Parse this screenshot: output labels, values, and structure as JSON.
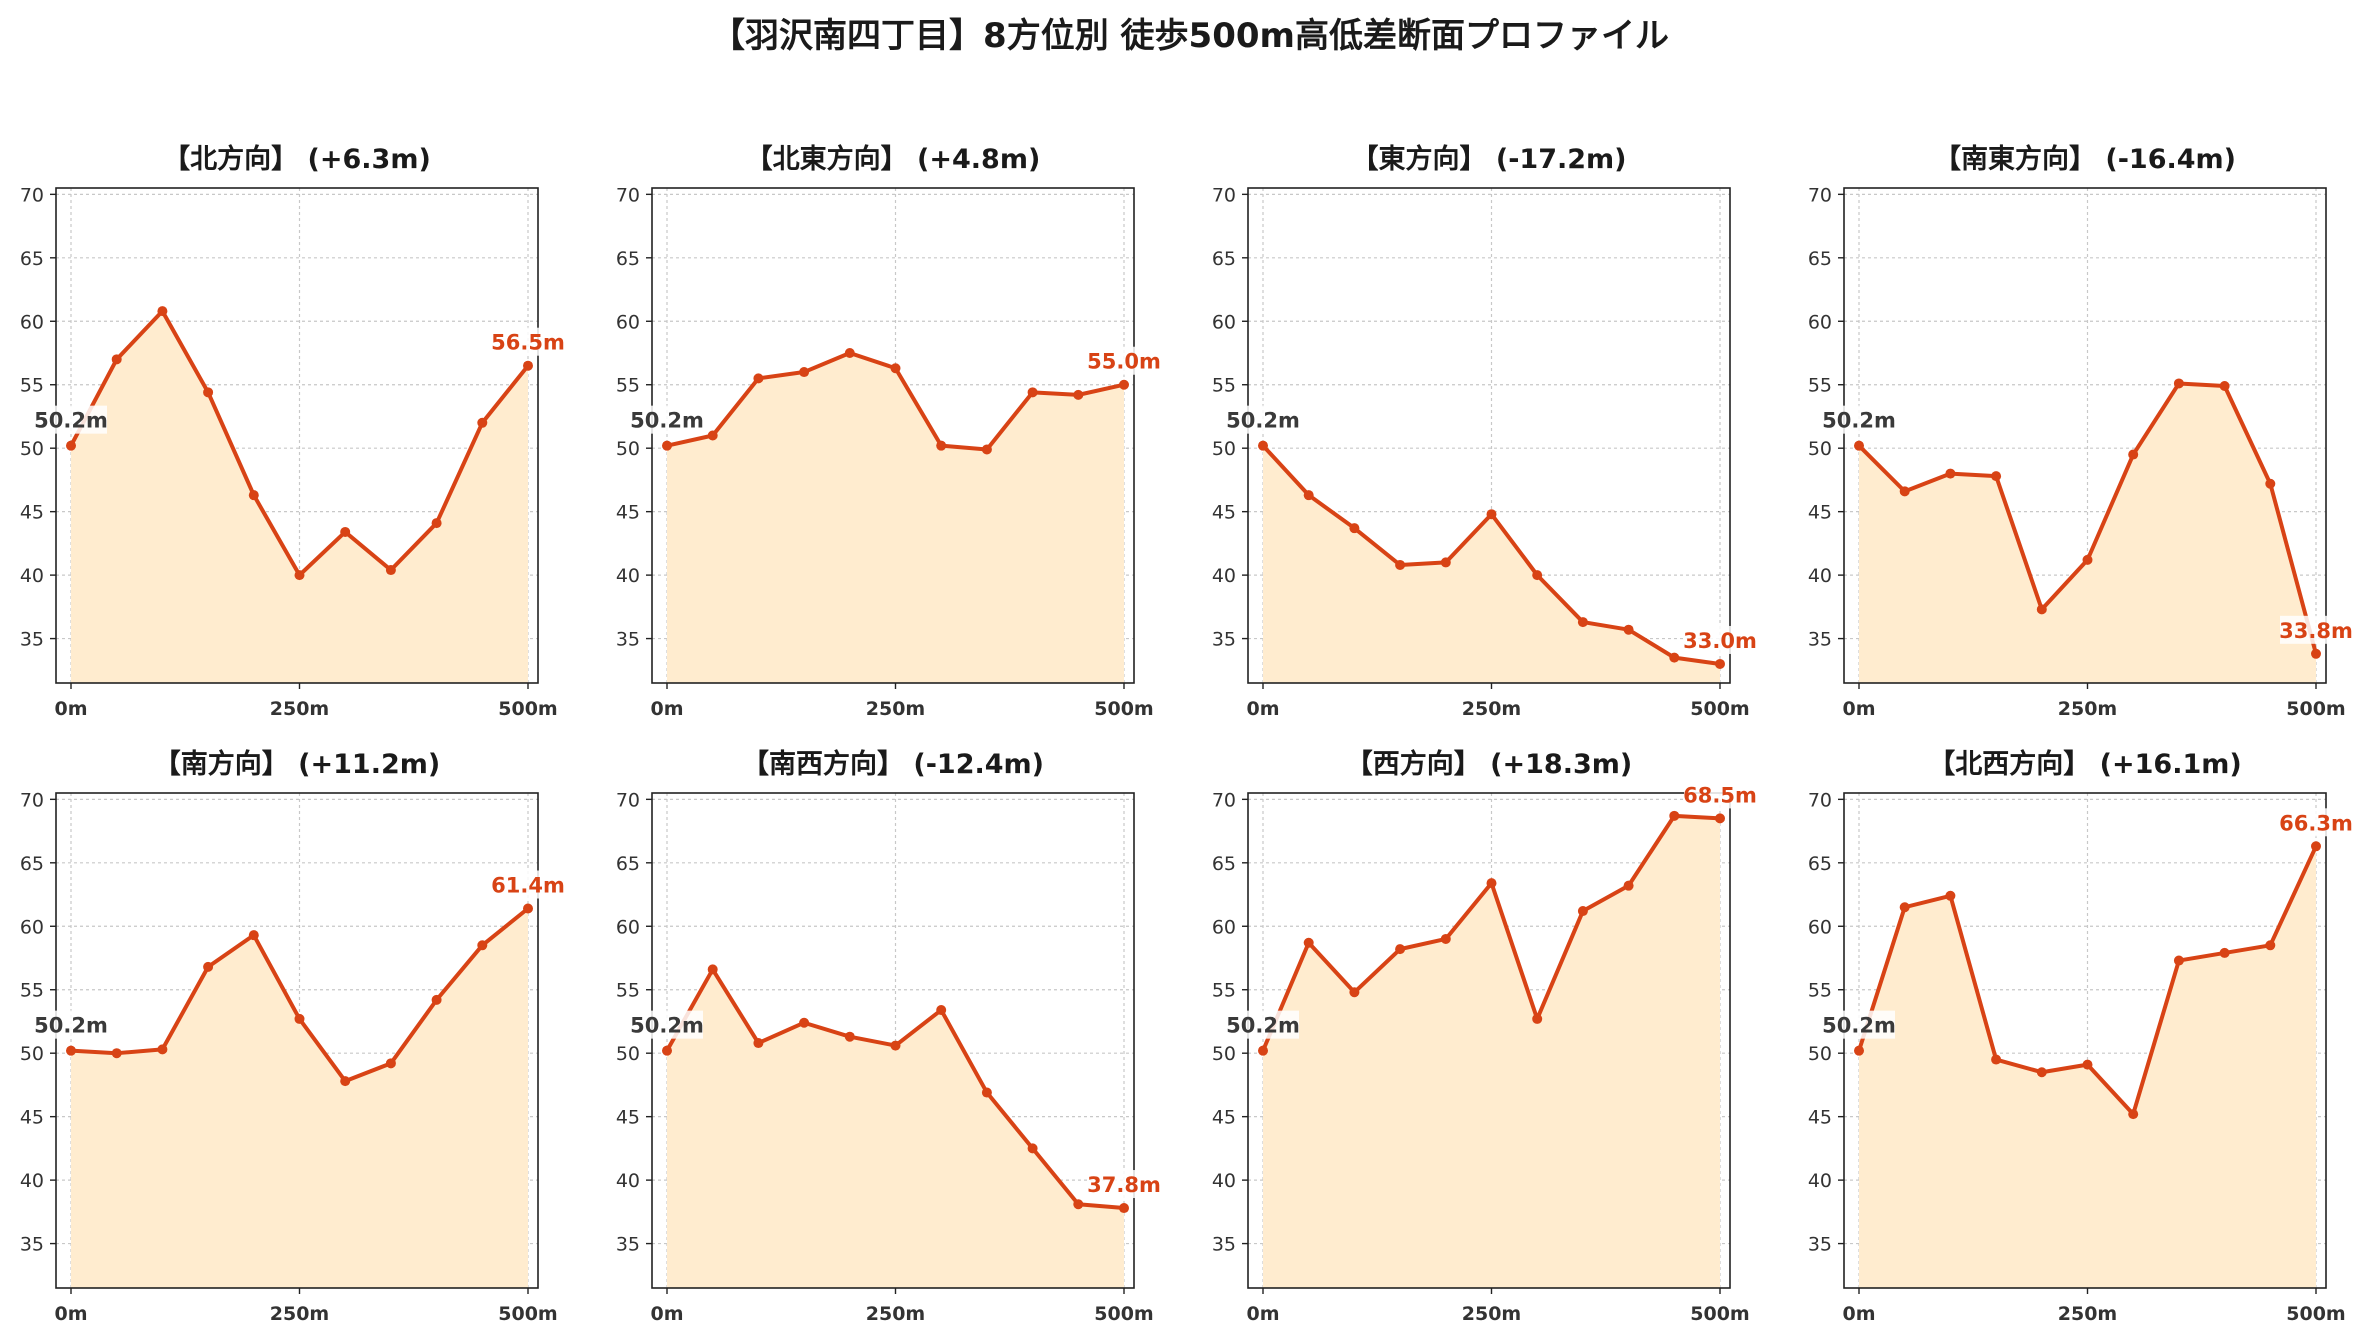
{
  "title": "【羽沢南四丁目】8方位別 徒歩500m高低差断面プロファイル",
  "colors": {
    "line": "#d84315",
    "fill": "#ffeccf",
    "grid": "#c8c8c8",
    "start_label": "#3a3a3a",
    "end_label": "#d84315"
  },
  "chart_data": [
    {
      "type": "area",
      "title": "【北方向】 (+6.3m)",
      "x": [
        0,
        50,
        100,
        150,
        200,
        250,
        300,
        350,
        400,
        450,
        500
      ],
      "xticks": [
        "0m",
        "250m",
        "500m"
      ],
      "ylim": [
        31.5,
        70.5
      ],
      "yticks": [
        35,
        40,
        45,
        50,
        55,
        60,
        65,
        70
      ],
      "values": [
        50.2,
        57.0,
        60.8,
        54.4,
        46.3,
        40.0,
        43.4,
        40.4,
        44.1,
        52.0,
        56.5
      ],
      "start_label": "50.2m",
      "end_label": "56.5m"
    },
    {
      "type": "area",
      "title": "【北東方向】 (+4.8m)",
      "x": [
        0,
        50,
        100,
        150,
        200,
        250,
        300,
        350,
        400,
        450,
        500
      ],
      "xticks": [
        "0m",
        "250m",
        "500m"
      ],
      "ylim": [
        31.5,
        70.5
      ],
      "yticks": [
        35,
        40,
        45,
        50,
        55,
        60,
        65,
        70
      ],
      "values": [
        50.2,
        51.0,
        55.5,
        56.0,
        57.5,
        56.3,
        50.2,
        49.9,
        54.4,
        54.2,
        55.0
      ],
      "start_label": "50.2m",
      "end_label": "55.0m"
    },
    {
      "type": "area",
      "title": "【東方向】 (-17.2m)",
      "x": [
        0,
        50,
        100,
        150,
        200,
        250,
        300,
        350,
        400,
        450,
        500
      ],
      "xticks": [
        "0m",
        "250m",
        "500m"
      ],
      "ylim": [
        31.5,
        70.5
      ],
      "yticks": [
        35,
        40,
        45,
        50,
        55,
        60,
        65,
        70
      ],
      "values": [
        50.2,
        46.3,
        43.7,
        40.8,
        41.0,
        44.8,
        40.0,
        36.3,
        35.7,
        33.5,
        33.0
      ],
      "start_label": "50.2m",
      "end_label": "33.0m"
    },
    {
      "type": "area",
      "title": "【南東方向】 (-16.4m)",
      "x": [
        0,
        50,
        100,
        150,
        200,
        250,
        300,
        350,
        400,
        450,
        500
      ],
      "xticks": [
        "0m",
        "250m",
        "500m"
      ],
      "ylim": [
        31.5,
        70.5
      ],
      "yticks": [
        35,
        40,
        45,
        50,
        55,
        60,
        65,
        70
      ],
      "values": [
        50.2,
        46.6,
        48.0,
        47.8,
        37.3,
        41.2,
        49.5,
        55.1,
        54.9,
        47.2,
        33.8
      ],
      "start_label": "50.2m",
      "end_label": "33.8m"
    },
    {
      "type": "area",
      "title": "【南方向】 (+11.2m)",
      "x": [
        0,
        50,
        100,
        150,
        200,
        250,
        300,
        350,
        400,
        450,
        500
      ],
      "xticks": [
        "0m",
        "250m",
        "500m"
      ],
      "ylim": [
        31.5,
        70.5
      ],
      "yticks": [
        35,
        40,
        45,
        50,
        55,
        60,
        65,
        70
      ],
      "values": [
        50.2,
        50.0,
        50.3,
        56.8,
        59.3,
        52.7,
        47.8,
        49.2,
        54.2,
        58.5,
        61.4
      ],
      "start_label": "50.2m",
      "end_label": "61.4m"
    },
    {
      "type": "area",
      "title": "【南西方向】 (-12.4m)",
      "x": [
        0,
        50,
        100,
        150,
        200,
        250,
        300,
        350,
        400,
        450,
        500
      ],
      "xticks": [
        "0m",
        "250m",
        "500m"
      ],
      "ylim": [
        31.5,
        70.5
      ],
      "yticks": [
        35,
        40,
        45,
        50,
        55,
        60,
        65,
        70
      ],
      "values": [
        50.2,
        56.6,
        50.8,
        52.4,
        51.3,
        50.6,
        53.4,
        46.9,
        42.5,
        38.1,
        37.8
      ],
      "start_label": "50.2m",
      "end_label": "37.8m"
    },
    {
      "type": "area",
      "title": "【西方向】 (+18.3m)",
      "x": [
        0,
        50,
        100,
        150,
        200,
        250,
        300,
        350,
        400,
        450,
        500
      ],
      "xticks": [
        "0m",
        "250m",
        "500m"
      ],
      "ylim": [
        31.5,
        70.5
      ],
      "yticks": [
        35,
        40,
        45,
        50,
        55,
        60,
        65,
        70
      ],
      "values": [
        50.2,
        58.7,
        54.8,
        58.2,
        59.0,
        63.4,
        52.7,
        61.2,
        63.2,
        68.7,
        68.5
      ],
      "start_label": "50.2m",
      "end_label": "68.5m"
    },
    {
      "type": "area",
      "title": "【北西方向】 (+16.1m)",
      "x": [
        0,
        50,
        100,
        150,
        200,
        250,
        300,
        350,
        400,
        450,
        500
      ],
      "xticks": [
        "0m",
        "250m",
        "500m"
      ],
      "ylim": [
        31.5,
        70.5
      ],
      "yticks": [
        35,
        40,
        45,
        50,
        55,
        60,
        65,
        70
      ],
      "values": [
        50.2,
        61.5,
        62.4,
        49.5,
        48.5,
        49.1,
        45.2,
        57.3,
        57.9,
        58.5,
        66.3
      ],
      "start_label": "50.2m",
      "end_label": "66.3m"
    }
  ]
}
